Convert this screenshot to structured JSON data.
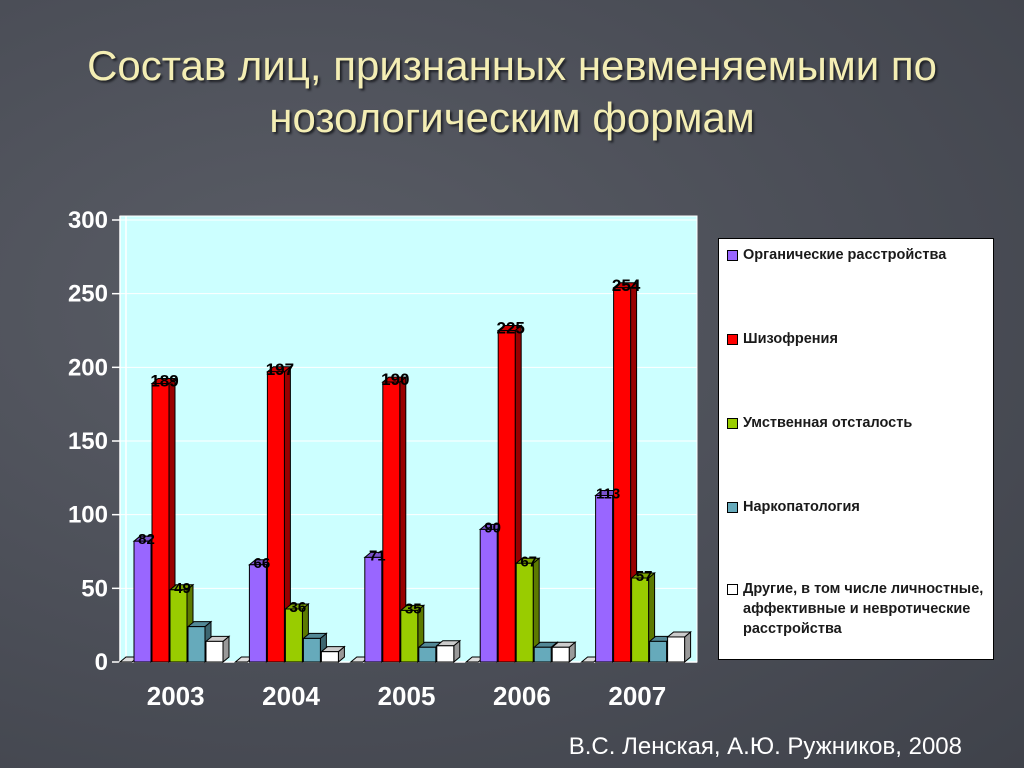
{
  "header": {
    "title_line1": "Состав лиц, признанных невменяемыми по",
    "title_line2": "нозологическим формам"
  },
  "footer": {
    "source": "В.С. Ленская, А.Ю. Ружников, 2008"
  },
  "chart_data": {
    "type": "bar",
    "title": "Состав лиц, признанных невменяемыми по нозологическим формам",
    "categories": [
      "2003",
      "2004",
      "2005",
      "2006",
      "2007"
    ],
    "ylim": [
      0,
      300
    ],
    "yticks": [
      "0",
      "50",
      "100",
      "150",
      "200",
      "250",
      "300"
    ],
    "grid": true,
    "legend_position": "right",
    "plot_background": "#ccffff",
    "series": [
      {
        "name": "Органические расстройства",
        "color": "#9966ff",
        "values": [
          82,
          66,
          71,
          90,
          113
        ],
        "labels": [
          "82",
          "66",
          "71",
          "90",
          "113"
        ]
      },
      {
        "name": "Шизофрения",
        "color": "#ff0000",
        "values": [
          189,
          197,
          190,
          225,
          254
        ],
        "labels": [
          "189",
          "197",
          "190",
          "225",
          "254"
        ]
      },
      {
        "name": "Умственная отсталость",
        "color": "#99cc00",
        "values": [
          49,
          36,
          35,
          67,
          57
        ],
        "labels": [
          "49",
          "36",
          "35",
          "67",
          "57"
        ]
      },
      {
        "name": "Наркопатология",
        "color": "#66aabb",
        "values": [
          24,
          16,
          10,
          10,
          14
        ]
      },
      {
        "name": "Другие, в том числе личностные, аффективные и невротические расстройства",
        "color": "#ffffff",
        "values": [
          14,
          7,
          11,
          10,
          17
        ]
      }
    ]
  }
}
